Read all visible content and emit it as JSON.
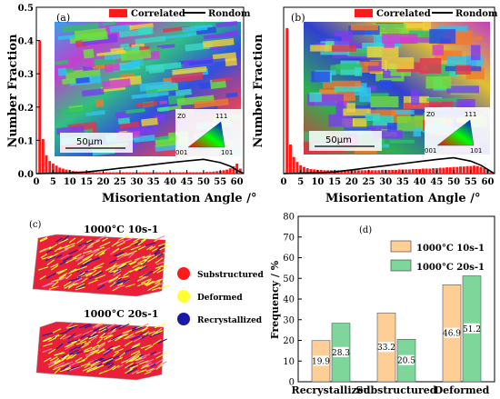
{
  "chart_data": [
    {
      "panel": "(a)",
      "type": "bar",
      "ylabel": "Number Fraction",
      "xlabel": "Misorientation Angle /°",
      "xlim": [
        0,
        62
      ],
      "ylim": [
        0,
        0.5
      ],
      "xticks": [
        "0",
        "5",
        "10",
        "15",
        "20",
        "25",
        "30",
        "35",
        "40",
        "45",
        "50",
        "55",
        "60"
      ],
      "yticks": [
        "0.0",
        "0.1",
        "0.2",
        "0.3",
        "0.4",
        "0.5"
      ],
      "legend": [
        "Correlated",
        "Rondom"
      ],
      "legend_position": "top-right",
      "scale_bar": "50μm",
      "ipf_labels": [
        "Z0",
        "111",
        "001",
        "101"
      ],
      "series": [
        {
          "name": "Correlated",
          "kind": "bar",
          "color": "#ff1a1a",
          "x": [
            1,
            2,
            3,
            4,
            5,
            6,
            7,
            8,
            9,
            10,
            11,
            12,
            13,
            14,
            15,
            16,
            17,
            18,
            19,
            20,
            21,
            22,
            23,
            24,
            25,
            26,
            27,
            28,
            29,
            30,
            31,
            32,
            33,
            34,
            35,
            36,
            37,
            38,
            39,
            40,
            41,
            42,
            43,
            44,
            45,
            46,
            47,
            48,
            49,
            50,
            51,
            52,
            53,
            54,
            55,
            56,
            57,
            58,
            59,
            60,
            61
          ],
          "values": [
            0.4,
            0.104,
            0.055,
            0.038,
            0.03,
            0.024,
            0.018,
            0.015,
            0.012,
            0.01,
            0.008,
            0.007,
            0.006,
            0.005,
            0.005,
            0.004,
            0.004,
            0.004,
            0.004,
            0.004,
            0.004,
            0.004,
            0.004,
            0.004,
            0.004,
            0.004,
            0.004,
            0.004,
            0.004,
            0.004,
            0.004,
            0.004,
            0.004,
            0.004,
            0.004,
            0.004,
            0.004,
            0.004,
            0.004,
            0.004,
            0.004,
            0.004,
            0.004,
            0.004,
            0.004,
            0.004,
            0.004,
            0.004,
            0.004,
            0.004,
            0.005,
            0.005,
            0.006,
            0.007,
            0.008,
            0.01,
            0.012,
            0.016,
            0.022,
            0.03,
            0.015
          ]
        },
        {
          "name": "Rondom",
          "kind": "line",
          "color": "#000000",
          "x": [
            0,
            5,
            10,
            15,
            20,
            25,
            30,
            35,
            40,
            45,
            50,
            55,
            58,
            60,
            62
          ],
          "values": [
            0,
            0.001,
            0.002,
            0.005,
            0.01,
            0.016,
            0.021,
            0.027,
            0.033,
            0.038,
            0.043,
            0.033,
            0.022,
            0.01,
            0
          ]
        }
      ]
    },
    {
      "panel": "(b)",
      "type": "bar",
      "ylabel": "Number Fraction",
      "xlabel": "Misorientation Angle /°",
      "xlim": [
        0,
        62
      ],
      "ylim": [
        0,
        0.4
      ],
      "xticks": [
        "0",
        "5",
        "10",
        "15",
        "20",
        "25",
        "30",
        "35",
        "40",
        "45",
        "50",
        "55",
        "60"
      ],
      "yticks": [],
      "legend": [
        "Correlated",
        "Rondom"
      ],
      "legend_position": "top-right",
      "scale_bar": "50μm",
      "ipf_labels": [
        "Z0",
        "111",
        "001",
        "101"
      ],
      "series": [
        {
          "name": "Correlated",
          "kind": "bar",
          "color": "#ff1a1a",
          "x": [
            1,
            2,
            3,
            4,
            5,
            6,
            7,
            8,
            9,
            10,
            11,
            12,
            13,
            14,
            15,
            16,
            17,
            18,
            19,
            20,
            21,
            22,
            23,
            24,
            25,
            26,
            27,
            28,
            29,
            30,
            31,
            32,
            33,
            34,
            35,
            36,
            37,
            38,
            39,
            40,
            41,
            42,
            43,
            44,
            45,
            46,
            47,
            48,
            49,
            50,
            51,
            52,
            53,
            54,
            55,
            56,
            57,
            58,
            59,
            60,
            61
          ],
          "values": [
            0.35,
            0.07,
            0.04,
            0.028,
            0.02,
            0.016,
            0.013,
            0.011,
            0.01,
            0.009,
            0.009,
            0.008,
            0.008,
            0.008,
            0.008,
            0.008,
            0.008,
            0.008,
            0.008,
            0.008,
            0.008,
            0.008,
            0.008,
            0.008,
            0.008,
            0.008,
            0.008,
            0.008,
            0.009,
            0.009,
            0.009,
            0.009,
            0.009,
            0.01,
            0.01,
            0.01,
            0.01,
            0.011,
            0.011,
            0.011,
            0.012,
            0.012,
            0.012,
            0.013,
            0.013,
            0.014,
            0.014,
            0.015,
            0.015,
            0.016,
            0.016,
            0.017,
            0.017,
            0.018,
            0.018,
            0.019,
            0.018,
            0.016,
            0.013,
            0.009,
            0.004
          ]
        },
        {
          "name": "Rondom",
          "kind": "line",
          "color": "#000000",
          "x": [
            0,
            5,
            10,
            15,
            20,
            25,
            30,
            35,
            40,
            45,
            50,
            55,
            58,
            60,
            62
          ],
          "values": [
            0,
            0.001,
            0.002,
            0.004,
            0.009,
            0.014,
            0.019,
            0.024,
            0.029,
            0.034,
            0.038,
            0.03,
            0.02,
            0.01,
            0
          ]
        }
      ]
    },
    {
      "panel": "(c)",
      "type": "other",
      "map_labels": [
        "1000°C 10s-1",
        "1000°C 20s-1"
      ],
      "legend": [
        {
          "name": "Substructured",
          "color": "#ff1a1a"
        },
        {
          "name": "Deformed",
          "color": "#ffff33"
        },
        {
          "name": "Recrystallized",
          "color": "#1a1aa6"
        }
      ]
    },
    {
      "panel": "(d)",
      "type": "bar",
      "ylabel": "Frequency / %",
      "xlabel": "",
      "categories": [
        "Recrystallized",
        "Substructured",
        "Deformed"
      ],
      "ylim": [
        0,
        80
      ],
      "yticks": [
        "0",
        "10",
        "20",
        "30",
        "40",
        "50",
        "60",
        "70",
        "80"
      ],
      "legend_position": "top-left",
      "series": [
        {
          "name": "1000°C 10s-1",
          "color": "#fdcf96",
          "values": [
            19.9,
            33.2,
            46.9
          ],
          "labels": [
            "19.9",
            "33.2",
            "46.9"
          ]
        },
        {
          "name": "1000°C 20s-1",
          "color": "#7fd69a",
          "values": [
            28.3,
            20.5,
            51.2
          ],
          "labels": [
            "28.3",
            "20.5",
            "51.2"
          ]
        }
      ]
    }
  ]
}
